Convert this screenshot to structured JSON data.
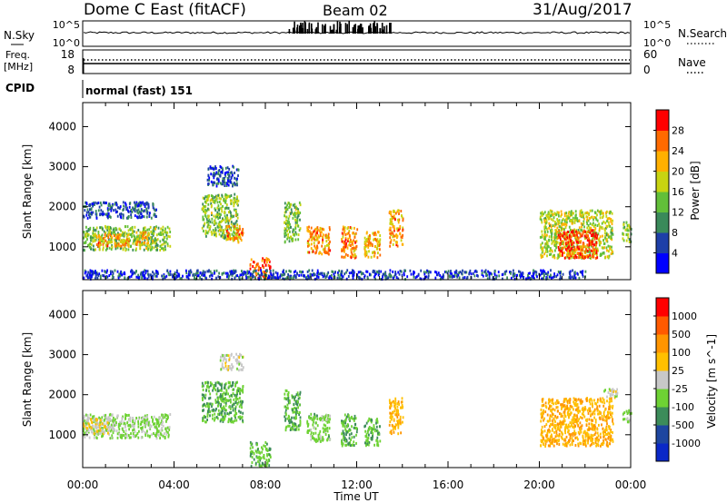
{
  "header": {
    "station": "Dome C East (fitACF)",
    "beam": "Beam 02",
    "date": "31/Aug/2017"
  },
  "top_panels": {
    "nsky": {
      "label": "N.Sky",
      "ticks": [
        "10^5",
        "10^0"
      ]
    },
    "nsearch": {
      "label": "N.Search",
      "ticks": [
        "10^5",
        "10^0"
      ]
    },
    "freq": {
      "label_line1": "Freq.",
      "label_line2": "[MHz]",
      "ticks": [
        "18",
        "8"
      ]
    },
    "nave": {
      "label": "Nave",
      "ticks": [
        "60",
        "0"
      ]
    },
    "cpid": {
      "label": "CPID",
      "mode_text": "normal (fast) 151"
    }
  },
  "time_axis": {
    "label": "Time UT",
    "ticks": [
      "00:00",
      "04:00",
      "08:00",
      "12:00",
      "16:00",
      "20:00",
      "00:00"
    ]
  },
  "colors": {
    "power_scale": [
      "#0000ff",
      "#1e3fa8",
      "#3a8a5a",
      "#62bf39",
      "#c8d411",
      "#ffb000",
      "#ff6a00",
      "#ff0000"
    ],
    "velocity_scale": [
      "#ff0000",
      "#ff5a00",
      "#ff9500",
      "#ffc000",
      "#c8c8c8",
      "#6ed234",
      "#3c8c5a",
      "#1e46a0",
      "#0a28c8"
    ]
  },
  "chart_data": [
    {
      "type": "heatmap",
      "title": "Power",
      "xlabel": "Time UT",
      "ylabel": "Slant Range [km]",
      "x_range_hours": [
        0,
        24
      ],
      "ylim": [
        180,
        4600
      ],
      "y_ticks": [
        1000,
        2000,
        3000,
        4000
      ],
      "colorbar": {
        "label": "Power [dB]",
        "ticks": [
          "4",
          "8",
          "12",
          "16",
          "20",
          "24",
          "28"
        ],
        "range": [
          0,
          30
        ]
      },
      "regions": [
        {
          "t0": 0.0,
          "t1": 3.8,
          "r0": 900,
          "r1": 1500,
          "value": 14
        },
        {
          "t0": 0.5,
          "t1": 2.0,
          "r0": 1000,
          "r1": 1300,
          "value": 22
        },
        {
          "t0": 2.3,
          "t1": 2.9,
          "r0": 1000,
          "r1": 1350,
          "value": 20
        },
        {
          "t0": 0.0,
          "t1": 3.2,
          "r0": 1700,
          "r1": 2100,
          "value": 6
        },
        {
          "t0": 5.2,
          "t1": 6.8,
          "r0": 1200,
          "r1": 2300,
          "value": 14
        },
        {
          "t0": 6.2,
          "t1": 7.0,
          "r0": 1100,
          "r1": 1500,
          "value": 22
        },
        {
          "t0": 5.4,
          "t1": 6.8,
          "r0": 2500,
          "r1": 3000,
          "value": 6
        },
        {
          "t0": 7.3,
          "t1": 8.2,
          "r0": 200,
          "r1": 700,
          "value": 24
        },
        {
          "t0": 8.8,
          "t1": 9.5,
          "r0": 1100,
          "r1": 2100,
          "value": 14
        },
        {
          "t0": 9.8,
          "t1": 10.8,
          "r0": 800,
          "r1": 1500,
          "value": 22
        },
        {
          "t0": 11.3,
          "t1": 12.0,
          "r0": 700,
          "r1": 1500,
          "value": 22
        },
        {
          "t0": 12.3,
          "t1": 13.0,
          "r0": 700,
          "r1": 1400,
          "value": 20
        },
        {
          "t0": 13.4,
          "t1": 14.0,
          "r0": 1000,
          "r1": 1900,
          "value": 22
        },
        {
          "t0": 20.0,
          "t1": 23.2,
          "r0": 700,
          "r1": 1900,
          "value": 16
        },
        {
          "t0": 20.8,
          "t1": 22.5,
          "r0": 700,
          "r1": 1400,
          "value": 26
        },
        {
          "t0": 23.6,
          "t1": 24.0,
          "r0": 1100,
          "r1": 1600,
          "value": 14
        },
        {
          "t0": 0.0,
          "t1": 22.0,
          "r0": 180,
          "r1": 400,
          "value": 5
        }
      ]
    },
    {
      "type": "heatmap",
      "title": "Velocity",
      "xlabel": "Time UT",
      "ylabel": "Slant Range [km]",
      "x_range_hours": [
        0,
        24
      ],
      "ylim": [
        180,
        4600
      ],
      "y_ticks": [
        1000,
        2000,
        3000,
        4000
      ],
      "colorbar": {
        "label": "Velocity [m s^-1]",
        "ticks": [
          "1000",
          "500",
          "100",
          "25",
          "-25",
          "-100",
          "-500",
          "-1000"
        ],
        "range": [
          -1000,
          1000
        ]
      },
      "regions": [
        {
          "t0": 0.0,
          "t1": 3.8,
          "r0": 900,
          "r1": 1500,
          "value": -150
        },
        {
          "t0": 0.0,
          "t1": 1.2,
          "r0": 1000,
          "r1": 1400,
          "value": 120
        },
        {
          "t0": 5.2,
          "t1": 7.0,
          "r0": 1300,
          "r1": 2300,
          "value": -300
        },
        {
          "t0": 6.0,
          "t1": 7.0,
          "r0": 2600,
          "r1": 3000,
          "value": 0
        },
        {
          "t0": 7.3,
          "t1": 8.2,
          "r0": 200,
          "r1": 800,
          "value": -300
        },
        {
          "t0": 8.8,
          "t1": 9.5,
          "r0": 1100,
          "r1": 2100,
          "value": -300
        },
        {
          "t0": 9.8,
          "t1": 10.8,
          "r0": 800,
          "r1": 1500,
          "value": -200
        },
        {
          "t0": 11.3,
          "t1": 12.0,
          "r0": 700,
          "r1": 1500,
          "value": -300
        },
        {
          "t0": 12.3,
          "t1": 13.0,
          "r0": 700,
          "r1": 1400,
          "value": -300
        },
        {
          "t0": 13.4,
          "t1": 14.0,
          "r0": 1000,
          "r1": 1900,
          "value": 300
        },
        {
          "t0": 20.0,
          "t1": 23.2,
          "r0": 700,
          "r1": 1900,
          "value": 300
        },
        {
          "t0": 22.8,
          "t1": 23.4,
          "r0": 1900,
          "r1": 2150,
          "value": 0
        },
        {
          "t0": 23.6,
          "t1": 24.0,
          "r0": 1300,
          "r1": 1600,
          "value": -150
        }
      ]
    }
  ]
}
